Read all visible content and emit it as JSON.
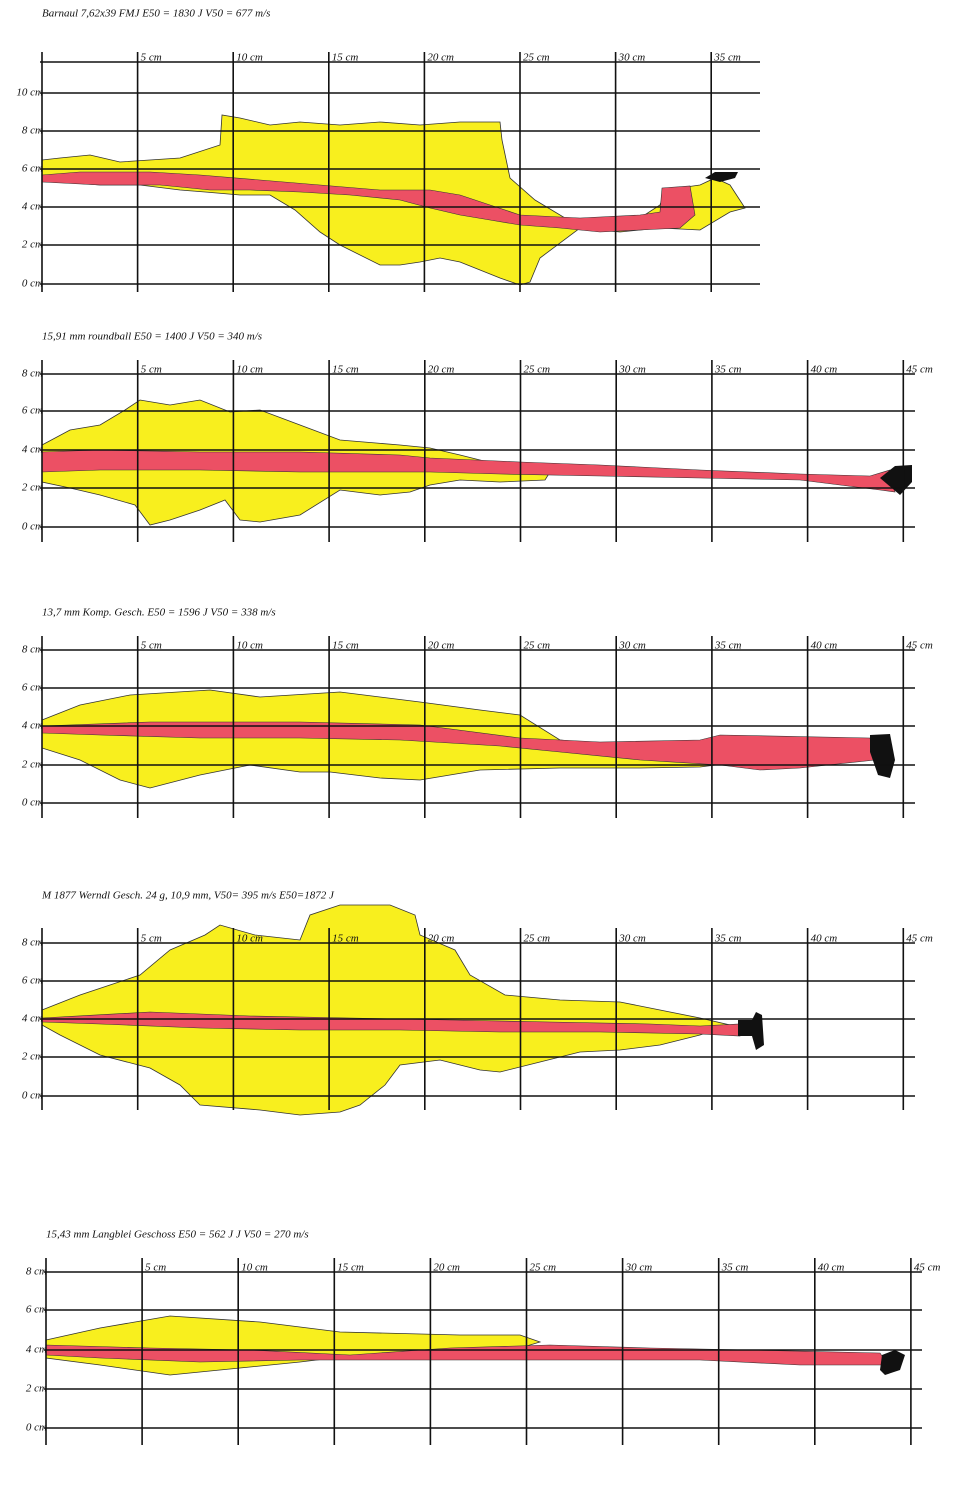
{
  "panels": [
    {
      "title": "Barnaul 7,62x39 FMJ E50 = 1830 J V50 = 677 m/s",
      "x_labels": [
        "5 cm",
        "10 cm",
        "15 cm",
        "20 cm",
        "25 cm",
        "30 cm",
        "35 cm"
      ],
      "y_labels": [
        "10 cm",
        "8 cm",
        "6 cm",
        "4 cm",
        "2 cm",
        "0 cm"
      ]
    },
    {
      "title": "15,91 mm roundball E50 = 1400 J V50 = 340 m/s",
      "x_labels": [
        "5 cm",
        "10 cm",
        "15 cm",
        "20 cm",
        "25 cm",
        "30 cm",
        "35 cm",
        "40 cm",
        "45 cm"
      ],
      "y_labels": [
        "8 cm",
        "6 cm",
        "4 cm",
        "2 cm",
        "0 cm"
      ]
    },
    {
      "title": "13,7 mm Komp. Gesch. E50 = 1596 J V50 = 338 m/s",
      "x_labels": [
        "5 cm",
        "10 cm",
        "15 cm",
        "20 cm",
        "25 cm",
        "30 cm",
        "35 cm",
        "40 cm",
        "45 cm"
      ],
      "y_labels": [
        "8 cm",
        "6 cm",
        "4 cm",
        "2 cm",
        "0 cm"
      ]
    },
    {
      "title": "M 1877 Werndl Gesch. 24 g, 10,9 mm, V50= 395 m/s E50=1872 J",
      "x_labels": [
        "5 cm",
        "10 cm",
        "15 cm",
        "20 cm",
        "25 cm",
        "30 cm",
        "35 cm",
        "40 cm",
        "45 cm"
      ],
      "y_labels": [
        "8 cm",
        "6 cm",
        "4 cm",
        "2 cm",
        "0 cm"
      ]
    },
    {
      "title": "15,43 mm Langblei Geschoss E50 = 562 J J V50 = 270 m/s",
      "x_labels": [
        "5 cm",
        "10 cm",
        "15 cm",
        "20 cm",
        "25 cm",
        "30 cm",
        "35 cm",
        "40 cm",
        "45 cm"
      ],
      "y_labels": [
        "8 cm",
        "6 cm",
        "4 cm",
        "2 cm",
        "0 cm"
      ]
    }
  ]
}
